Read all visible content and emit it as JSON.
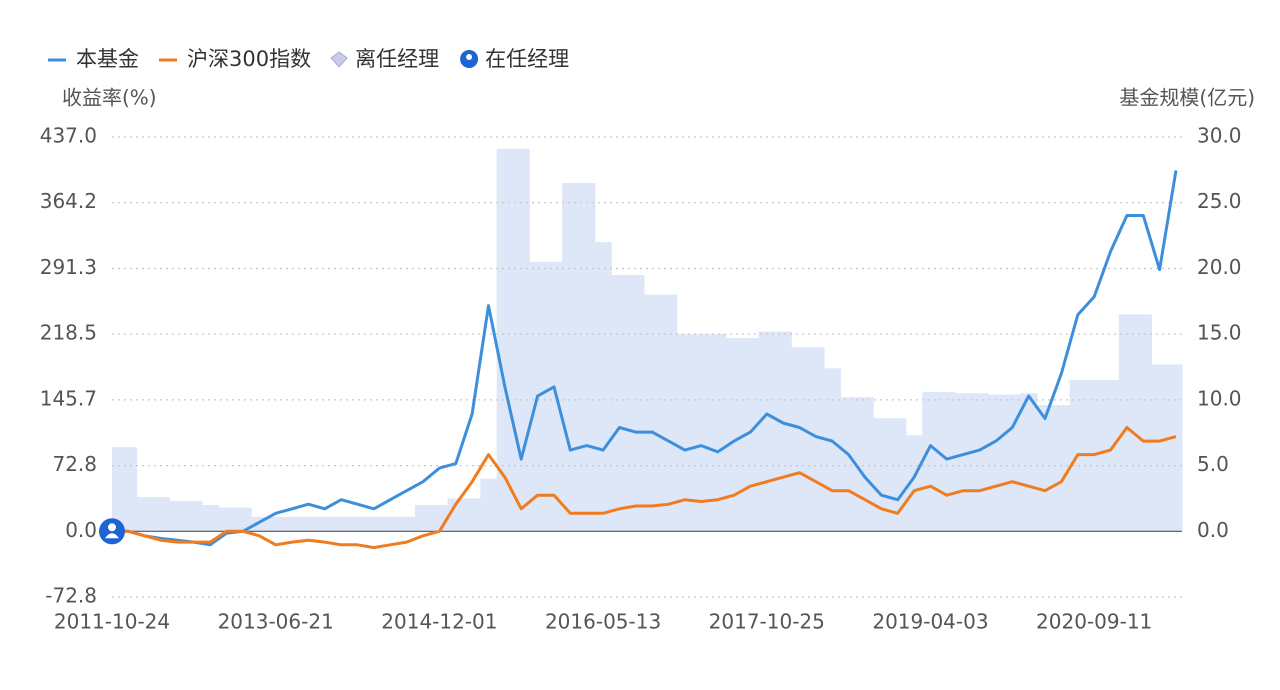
{
  "chart_data": {
    "type": "line",
    "y_label": "收益率(%)",
    "y2_label": "基金规模(亿元)",
    "grid": true,
    "categories": [
      "2011-10-24",
      null,
      null,
      null,
      null,
      null,
      null,
      null,
      null,
      null,
      "2013-06-21",
      null,
      null,
      null,
      null,
      null,
      null,
      null,
      null,
      null,
      "2014-12-01",
      null,
      null,
      null,
      null,
      null,
      null,
      null,
      null,
      null,
      "2016-05-13",
      null,
      null,
      null,
      null,
      null,
      null,
      null,
      null,
      null,
      "2017-10-25",
      null,
      null,
      null,
      null,
      null,
      null,
      null,
      null,
      null,
      "2019-04-03",
      null,
      null,
      null,
      null,
      null,
      null,
      null,
      null,
      null,
      "2020-09-11",
      null,
      null,
      null,
      null,
      null
    ],
    "ylim": [
      -72.8,
      437.0
    ],
    "yticks": [
      -72.8,
      {
        "value": 0,
        "label": "0.0"
      },
      72.8,
      145.7,
      218.5,
      291.3,
      364.2,
      {
        "value": 437.0,
        "label": "437.0"
      }
    ],
    "y2lim": [
      -5,
      30
    ],
    "y2ticks": [
      {
        "value": 0,
        "label": "0.0"
      },
      {
        "value": 5,
        "label": "5.0"
      },
      {
        "value": 10,
        "label": "10.0"
      },
      {
        "value": 15,
        "label": "15.0"
      },
      {
        "value": 20,
        "label": "20.0"
      },
      {
        "value": 25,
        "label": "25.0"
      },
      {
        "value": 30,
        "label": "30.0"
      }
    ],
    "series": [
      {
        "name": "本基金",
        "type": "line",
        "color": "#3d8fdc",
        "values": [
          0,
          0,
          -5,
          -8,
          -10,
          -12,
          -15,
          -2,
          0,
          10,
          20,
          25,
          30,
          25,
          35,
          30,
          25,
          35,
          45,
          55,
          70,
          75,
          130,
          250,
          160,
          80,
          150,
          160,
          90,
          95,
          90,
          115,
          110,
          110,
          100,
          90,
          95,
          88,
          100,
          110,
          130,
          120,
          115,
          105,
          100,
          85,
          60,
          40,
          35,
          60,
          95,
          80,
          85,
          90,
          100,
          115,
          150,
          125,
          175,
          240,
          260,
          310,
          350,
          350,
          290,
          400
        ]
      },
      {
        "name": "沪深300指数",
        "type": "line",
        "color": "#f07c1e",
        "values": [
          0,
          0,
          -5,
          -10,
          -12,
          -12,
          -12,
          0,
          0,
          -5,
          -15,
          -12,
          -10,
          -12,
          -15,
          -15,
          -18,
          -15,
          -12,
          -5,
          0,
          30,
          55,
          85,
          60,
          25,
          40,
          40,
          20,
          20,
          20,
          25,
          28,
          28,
          30,
          35,
          33,
          35,
          40,
          50,
          55,
          60,
          65,
          55,
          45,
          45,
          35,
          25,
          20,
          45,
          50,
          40,
          45,
          45,
          50,
          55,
          50,
          45,
          55,
          85,
          85,
          90,
          115,
          100,
          100,
          105
        ]
      },
      {
        "type": "bar",
        "axis": "y2",
        "color": "#dde7f8",
        "values": [
          6.4,
          6.4,
          2.6,
          2.6,
          2.3,
          2.3,
          2.0,
          1.8,
          1.8,
          1.1,
          1.1,
          1.1,
          1.1,
          1.1,
          1.1,
          1.1,
          1.1,
          1.1,
          1.1,
          2.0,
          2.0,
          2.5,
          2.5,
          4.0,
          29.1,
          29.1,
          20.5,
          20.5,
          26.5,
          26.5,
          22.0,
          19.5,
          19.5,
          18.0,
          18.0,
          15.0,
          15.0,
          15.0,
          14.7,
          14.7,
          15.2,
          15.2,
          14.0,
          14.0,
          12.4,
          10.2,
          10.2,
          8.6,
          8.6,
          7.3,
          10.6,
          10.6,
          10.5,
          10.5,
          10.4,
          10.4,
          10.5,
          9.6,
          9.6,
          11.5,
          11.5,
          11.5,
          16.5,
          16.5,
          12.7,
          12.7
        ]
      }
    ],
    "markers": [
      {
        "name": "离任经理",
        "color": "#c9cbe6"
      },
      {
        "name": "在任经理",
        "color": "#1e64d2"
      }
    ]
  }
}
